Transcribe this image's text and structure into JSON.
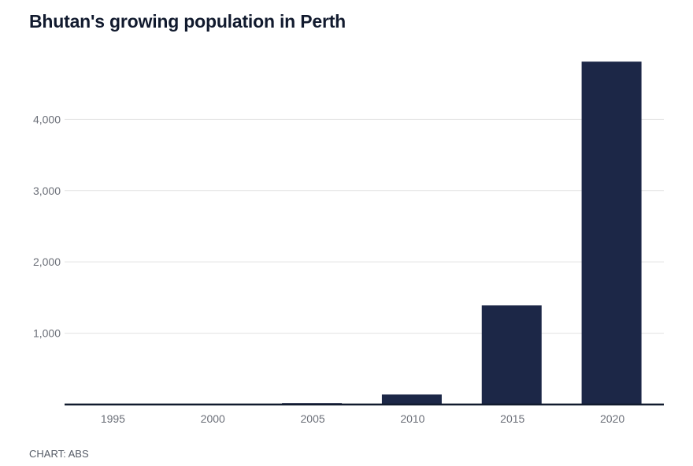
{
  "title": "Bhutan's growing population in Perth",
  "source": "CHART: ABS",
  "chart_data": {
    "type": "bar",
    "title": "Bhutan's growing population in Perth",
    "xlabel": "",
    "ylabel": "",
    "categories": [
      "1995",
      "2000",
      "2005",
      "2010",
      "2015",
      "2020"
    ],
    "values": [
      0,
      0,
      20,
      140,
      1390,
      4810
    ],
    "ylim": [
      0,
      4900
    ],
    "yticks": [
      1000,
      2000,
      3000,
      4000
    ],
    "ytick_labels": [
      "1,000",
      "2,000",
      "3,000",
      "4,000"
    ],
    "grid": true,
    "bar_color": "#1c2747",
    "baseline_color": "#111a2e",
    "grid_color": "#e3e3e3"
  }
}
